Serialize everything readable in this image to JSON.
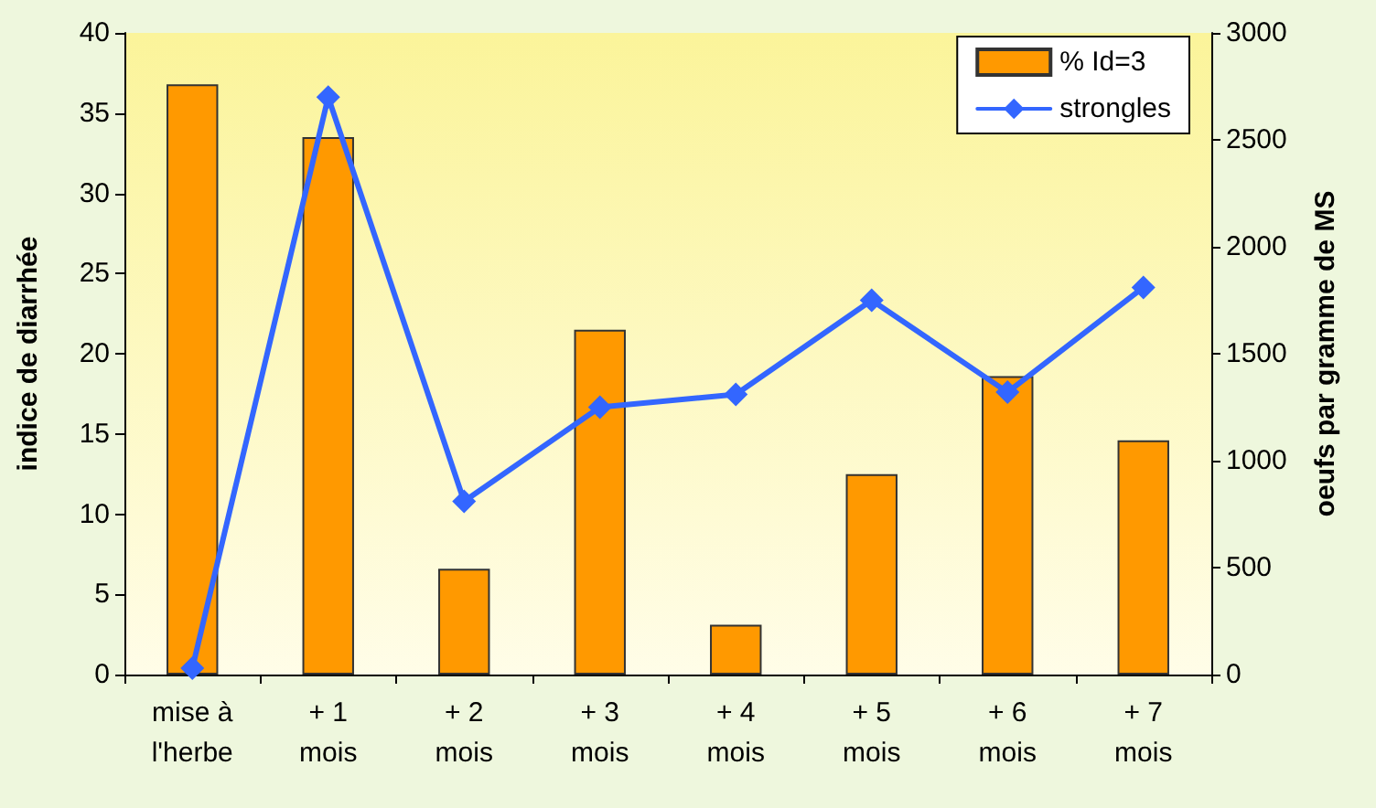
{
  "chart_data": {
    "type": "bar",
    "ylabel": "indice de diarrhée",
    "y2label": "oeufs par gramme de MS",
    "categories": [
      "mise à\nl'herbe",
      "+ 1\nmois",
      "+ 2\nmois",
      "+ 3\nmois",
      "+ 4\nmois",
      "+ 5\nmois",
      "+ 6\nmois",
      "+ 7\nmois"
    ],
    "series": [
      {
        "name": "% Id=3",
        "color": "#ff9900",
        "values": [
          36.8,
          33.5,
          6.6,
          21.5,
          3.1,
          12.5,
          18.6,
          14.6
        ]
      },
      {
        "name": "strongles",
        "type": "line",
        "axis": "y2",
        "color": "#3366ff",
        "values": [
          30,
          2700,
          810,
          1250,
          1310,
          1750,
          1320,
          1810
        ]
      }
    ],
    "ylim": [
      0,
      40
    ],
    "yticks": [
      0,
      5,
      10,
      15,
      20,
      25,
      30,
      35,
      40
    ],
    "y2lim": [
      0,
      3000
    ],
    "y2ticks": [
      0,
      500,
      1000,
      1500,
      2000,
      2500,
      3000
    ],
    "grid": false,
    "legend": "top right",
    "marker": "diamond",
    "line_style": "solid"
  }
}
